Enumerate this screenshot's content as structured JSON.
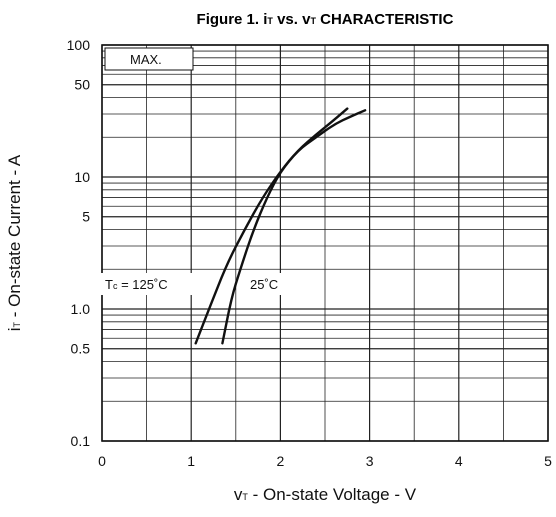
{
  "chart_data": {
    "type": "line",
    "title_parts": {
      "prefix": "Figure 1.  ",
      "i_main": "i",
      "i_sub": "T",
      "vs": " vs. ",
      "v_main": "v",
      "v_sub": "T",
      "suffix": " CHARACTERISTIC"
    },
    "xlabel_parts": {
      "main": "v",
      "sub": "T",
      "rest": " - On-state Voltage - V"
    },
    "ylabel_parts": {
      "main": "i",
      "sub": "T",
      "rest": " - On-state Current - A"
    },
    "x_axis": {
      "scale": "linear",
      "range": [
        0,
        5
      ],
      "tick_labels": [
        "0",
        "1",
        "2",
        "3",
        "4",
        "5"
      ]
    },
    "y_axis": {
      "scale": "log",
      "range": [
        0.1,
        100
      ],
      "tick_labels": [
        {
          "label": "0.1",
          "value": 0.1
        },
        {
          "label": "0.5",
          "value": 0.5
        },
        {
          "label": "1.0",
          "value": 1.0
        },
        {
          "label": "5",
          "value": 5
        },
        {
          "label": "10",
          "value": 10
        },
        {
          "label": "50",
          "value": 50
        },
        {
          "label": "100",
          "value": 100
        }
      ]
    },
    "grid": true,
    "box_label": "MAX.",
    "series": [
      {
        "name": "Tc = 125°C",
        "label_parts": {
          "main": "T",
          "sub": "c",
          "rest": " = 125˚C"
        },
        "color": "#111111",
        "points": [
          [
            1.05,
            0.55
          ],
          [
            1.2,
            1.0
          ],
          [
            1.4,
            2.2
          ],
          [
            1.6,
            4.0
          ],
          [
            1.8,
            7.0
          ],
          [
            2.0,
            11
          ],
          [
            2.2,
            16
          ],
          [
            2.4,
            21
          ],
          [
            2.6,
            27
          ],
          [
            2.75,
            33
          ]
        ]
      },
      {
        "name": "25°C",
        "label_parts": {
          "main": "25˚C"
        },
        "color": "#111111",
        "points": [
          [
            1.35,
            0.55
          ],
          [
            1.45,
            1.2
          ],
          [
            1.55,
            2.0
          ],
          [
            1.7,
            4.0
          ],
          [
            1.85,
            7.0
          ],
          [
            2.0,
            11
          ],
          [
            2.2,
            16
          ],
          [
            2.4,
            20
          ],
          [
            2.6,
            25
          ],
          [
            2.8,
            29
          ],
          [
            2.95,
            32
          ]
        ]
      }
    ]
  }
}
